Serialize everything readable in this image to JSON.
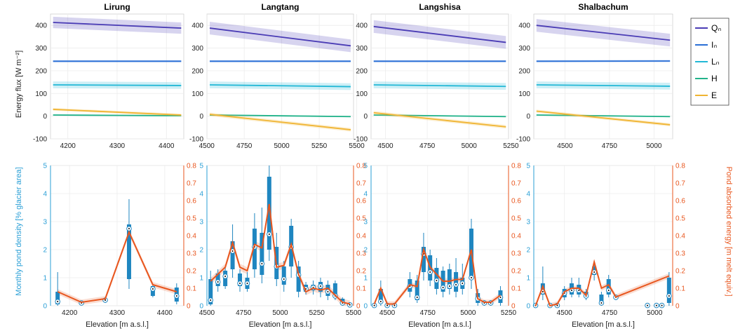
{
  "figure": {
    "top_ylabel": "Energy flux [W m⁻²]",
    "bottom_ylabel_left": "Monthly pond density [% glacier area]",
    "bottom_ylabel_right": "Pond absorbed energy [m melt equiv.]",
    "xlabel": "Elevation [m a.s.l.]",
    "legend": [
      "Qₙ",
      "Iₙ",
      "Lₙ",
      "H",
      "E"
    ],
    "colors": {
      "Qn": "#4a3cb5",
      "In": "#2a6fd6",
      "Ln": "#22b8d6",
      "H": "#22b38a",
      "E": "#f0b432",
      "box": "#1f86c0",
      "orange": "#e8561e",
      "left_axis": "#2a9fd6",
      "right_axis": "#e8561e"
    }
  },
  "chart_data": [
    {
      "type": "line",
      "title": "Lirung",
      "x": [
        4170,
        4430
      ],
      "ylim": [
        -100,
        450
      ],
      "xticks": [
        4200,
        4300,
        4400
      ],
      "yticks": [
        -100,
        0,
        100,
        200,
        300,
        400
      ],
      "series": [
        {
          "name": "Qₙ",
          "values": [
            413,
            388
          ],
          "band": 25
        },
        {
          "name": "Iₙ",
          "values": [
            242,
            242
          ],
          "band": 5
        },
        {
          "name": "Lₙ",
          "values": [
            138,
            135
          ],
          "band": 15
        },
        {
          "name": "H",
          "values": [
            5,
            2
          ],
          "band": 3
        },
        {
          "name": "E",
          "values": [
            30,
            5
          ],
          "band": 6
        }
      ]
    },
    {
      "type": "line",
      "title": "Langtang",
      "x": [
        4520,
        5460
      ],
      "ylim": [
        -100,
        450
      ],
      "xticks": [
        4500,
        4750,
        5000,
        5250,
        5500
      ],
      "yticks": [
        -100,
        0,
        100,
        200,
        300,
        400
      ],
      "series": [
        {
          "name": "Qₙ",
          "values": [
            388,
            310
          ],
          "band": 28
        },
        {
          "name": "Iₙ",
          "values": [
            242,
            242
          ],
          "band": 5
        },
        {
          "name": "Lₙ",
          "values": [
            138,
            130
          ],
          "band": 15
        },
        {
          "name": "H",
          "values": [
            5,
            -2
          ],
          "band": 3
        },
        {
          "name": "E",
          "values": [
            8,
            -60
          ],
          "band": 8
        }
      ]
    },
    {
      "type": "line",
      "title": "Langshisa",
      "x": [
        4430,
        5220
      ],
      "ylim": [
        -100,
        450
      ],
      "xticks": [
        4500,
        4750,
        5000,
        5250
      ],
      "yticks": [
        -100,
        0,
        100,
        200,
        300,
        400
      ],
      "series": [
        {
          "name": "Qₙ",
          "values": [
            395,
            325
          ],
          "band": 28
        },
        {
          "name": "Iₙ",
          "values": [
            242,
            242
          ],
          "band": 5
        },
        {
          "name": "Lₙ",
          "values": [
            138,
            131
          ],
          "band": 15
        },
        {
          "name": "H",
          "values": [
            5,
            -2
          ],
          "band": 3
        },
        {
          "name": "E",
          "values": [
            15,
            -47
          ],
          "band": 8
        }
      ]
    },
    {
      "type": "line",
      "title": "Shalbachum",
      "x": [
        4340,
        5090
      ],
      "ylim": [
        -100,
        450
      ],
      "xticks": [
        4500,
        4750,
        5000
      ],
      "yticks": [
        -100,
        0,
        100,
        200,
        300,
        400
      ],
      "series": [
        {
          "name": "Qₙ",
          "values": [
            400,
            335
          ],
          "band": 28
        },
        {
          "name": "Iₙ",
          "values": [
            242,
            243
          ],
          "band": 5
        },
        {
          "name": "Lₙ",
          "values": [
            138,
            132
          ],
          "band": 15
        },
        {
          "name": "H",
          "values": [
            5,
            -2
          ],
          "band": 3
        },
        {
          "name": "E",
          "values": [
            22,
            -38
          ],
          "band": 7
        }
      ]
    },
    {
      "type": "box",
      "title": "",
      "xlim": [
        4160,
        4440
      ],
      "ylim_left": [
        0,
        5
      ],
      "ylim_right": [
        0,
        0.8
      ],
      "xticks": [
        4200,
        4300,
        4400
      ],
      "yticks_left": [
        0,
        1,
        2,
        3,
        4,
        5
      ],
      "yticks_right": [
        0,
        0.1,
        0.2,
        0.3,
        0.4,
        0.5,
        0.6,
        0.7,
        0.8
      ],
      "boxes": [
        {
          "x": 4175,
          "q1": 0.05,
          "q3": 0.5,
          "lo": 0,
          "hi": 1.2,
          "med": 0.15
        },
        {
          "x": 4225,
          "q1": 0.08,
          "q3": 0.12,
          "lo": 0.05,
          "hi": 0.14,
          "med": 0.1
        },
        {
          "x": 4275,
          "q1": 0.15,
          "q3": 0.25,
          "lo": 0.1,
          "hi": 0.3,
          "med": 0.2
        },
        {
          "x": 4325,
          "q1": 0.95,
          "q3": 2.9,
          "lo": 0.6,
          "hi": 3.8,
          "med": 2.75
        },
        {
          "x": 4375,
          "q1": 0.35,
          "q3": 0.7,
          "lo": 0.3,
          "hi": 0.75,
          "med": 0.6
        },
        {
          "x": 4425,
          "q1": 0.15,
          "q3": 0.65,
          "lo": 0.05,
          "hi": 0.8,
          "med": 0.35
        }
      ],
      "energy": {
        "x": [
          4175,
          4225,
          4275,
          4325,
          4375,
          4425
        ],
        "y": [
          0.08,
          0.02,
          0.04,
          0.42,
          0.12,
          0.08
        ],
        "band": 0.015
      }
    },
    {
      "type": "box",
      "title": "",
      "xlim": [
        4500,
        5500
      ],
      "ylim_left": [
        0,
        5
      ],
      "ylim_right": [
        0,
        0.8
      ],
      "xticks": [
        4500,
        4750,
        5000,
        5250,
        5500
      ],
      "yticks_left": [
        0,
        1,
        2,
        3,
        4,
        5
      ],
      "yticks_right": [
        0,
        0.1,
        0.2,
        0.3,
        0.4,
        0.5,
        0.6,
        0.7,
        0.8
      ],
      "boxes": [
        {
          "x": 4525,
          "q1": 0.05,
          "q3": 0.95,
          "lo": 0,
          "hi": 1.25,
          "med": 0.2
        },
        {
          "x": 4575,
          "q1": 0.7,
          "q3": 1.15,
          "lo": 0.5,
          "hi": 1.3,
          "med": 0.85
        },
        {
          "x": 4625,
          "q1": 0.7,
          "q3": 1.25,
          "lo": 0.6,
          "hi": 1.4,
          "med": 1.05
        },
        {
          "x": 4675,
          "q1": 1.3,
          "q3": 2.3,
          "lo": 1.0,
          "hi": 2.9,
          "med": 1.95
        },
        {
          "x": 4725,
          "q1": 0.7,
          "q3": 1.15,
          "lo": 0.5,
          "hi": 1.3,
          "med": 0.8
        },
        {
          "x": 4775,
          "q1": 0.6,
          "q3": 1.0,
          "lo": 0.5,
          "hi": 1.2,
          "med": 0.8
        },
        {
          "x": 4825,
          "q1": 1.3,
          "q3": 2.75,
          "lo": 1.0,
          "hi": 3.3,
          "med": 2.1
        },
        {
          "x": 4875,
          "q1": 1.1,
          "q3": 2.6,
          "lo": 0.8,
          "hi": 3.5,
          "med": 1.5
        },
        {
          "x": 4925,
          "q1": 2.0,
          "q3": 4.6,
          "lo": 1.6,
          "hi": 5.0,
          "med": 2.55
        },
        {
          "x": 4975,
          "q1": 0.95,
          "q3": 2.1,
          "lo": 0.7,
          "hi": 2.6,
          "med": 1.4
        },
        {
          "x": 5025,
          "q1": 0.75,
          "q3": 1.4,
          "lo": 0.5,
          "hi": 1.6,
          "med": 0.95
        },
        {
          "x": 5075,
          "q1": 1.4,
          "q3": 2.85,
          "lo": 1.0,
          "hi": 3.1,
          "med": 2.1
        },
        {
          "x": 5125,
          "q1": 0.5,
          "q3": 1.4,
          "lo": 0.3,
          "hi": 1.6,
          "med": 1.1
        },
        {
          "x": 5175,
          "q1": 0.5,
          "q3": 0.75,
          "lo": 0.4,
          "hi": 0.85,
          "med": 0.6
        },
        {
          "x": 5225,
          "q1": 0.55,
          "q3": 0.75,
          "lo": 0.4,
          "hi": 0.9,
          "med": 0.65
        },
        {
          "x": 5275,
          "q1": 0.5,
          "q3": 0.85,
          "lo": 0.3,
          "hi": 1.0,
          "med": 0.7
        },
        {
          "x": 5325,
          "q1": 0.35,
          "q3": 0.75,
          "lo": 0.2,
          "hi": 0.9,
          "med": 0.5
        },
        {
          "x": 5375,
          "q1": 0.3,
          "q3": 0.8,
          "lo": 0.2,
          "hi": 0.9,
          "med": 0.35
        },
        {
          "x": 5425,
          "q1": 0.05,
          "q3": 0.25,
          "lo": 0,
          "hi": 0.3,
          "med": 0.1
        },
        {
          "x": 5475,
          "q1": 0.0,
          "q3": 0.08,
          "lo": 0,
          "hi": 0.1,
          "med": 0.03
        }
      ],
      "energy": {
        "x": [
          4525,
          4575,
          4625,
          4675,
          4725,
          4775,
          4825,
          4875,
          4925,
          4975,
          5025,
          5075,
          5125,
          5175,
          5225,
          5275,
          5325,
          5375,
          5425,
          5475
        ],
        "y": [
          0.14,
          0.18,
          0.22,
          0.36,
          0.22,
          0.2,
          0.35,
          0.33,
          0.58,
          0.22,
          0.23,
          0.35,
          0.18,
          0.08,
          0.1,
          0.09,
          0.1,
          0.06,
          0.02,
          0.01
        ],
        "band": 0.02
      }
    },
    {
      "type": "box",
      "title": "",
      "xlim": [
        4400,
        5250
      ],
      "ylim_left": [
        0,
        5
      ],
      "ylim_right": [
        0,
        0.8
      ],
      "xticks": [
        4500,
        4750,
        5000,
        5250
      ],
      "yticks_left": [
        0,
        1,
        2,
        3,
        4,
        5
      ],
      "yticks_right": [
        0,
        0.1,
        0.2,
        0.3,
        0.4,
        0.5,
        0.6,
        0.7,
        0.8
      ],
      "boxes": [
        {
          "x": 4420,
          "q1": 0.0,
          "q3": 0.02,
          "lo": 0,
          "hi": 0.03,
          "med": 0.01
        },
        {
          "x": 4460,
          "q1": 0.1,
          "q3": 0.6,
          "lo": 0,
          "hi": 0.9,
          "med": 0.15
        },
        {
          "x": 4500,
          "q1": 0.0,
          "q3": 0.03,
          "lo": 0,
          "hi": 0.05,
          "med": 0.01
        },
        {
          "x": 4545,
          "q1": 0.0,
          "q3": 0.03,
          "lo": 0,
          "hi": 0.05,
          "med": 0.01
        },
        {
          "x": 4640,
          "q1": 0.5,
          "q3": 0.95,
          "lo": 0.3,
          "hi": 1.2,
          "med": 0.7
        },
        {
          "x": 4685,
          "q1": 0.2,
          "q3": 0.9,
          "lo": 0.1,
          "hi": 1.1,
          "med": 0.3
        },
        {
          "x": 4725,
          "q1": 1.2,
          "q3": 2.1,
          "lo": 0.9,
          "hi": 2.6,
          "med": 1.85
        },
        {
          "x": 4765,
          "q1": 0.9,
          "q3": 1.8,
          "lo": 0.7,
          "hi": 2.0,
          "med": 1.2
        },
        {
          "x": 4805,
          "q1": 0.6,
          "q3": 1.35,
          "lo": 0.4,
          "hi": 1.7,
          "med": 0.9
        },
        {
          "x": 4845,
          "q1": 0.5,
          "q3": 1.25,
          "lo": 0.3,
          "hi": 1.4,
          "med": 0.65
        },
        {
          "x": 4885,
          "q1": 0.6,
          "q3": 1.3,
          "lo": 0.4,
          "hi": 1.5,
          "med": 0.7
        },
        {
          "x": 4925,
          "q1": 0.5,
          "q3": 1.2,
          "lo": 0.3,
          "hi": 1.7,
          "med": 0.75
        },
        {
          "x": 4965,
          "q1": 0.6,
          "q3": 1.0,
          "lo": 0.4,
          "hi": 1.5,
          "med": 0.8
        },
        {
          "x": 5020,
          "q1": 1.0,
          "q3": 2.75,
          "lo": 0.6,
          "hi": 3.1,
          "med": 1.0
        },
        {
          "x": 5060,
          "q1": 0.1,
          "q3": 0.45,
          "lo": 0,
          "hi": 0.6,
          "med": 0.25
        },
        {
          "x": 5100,
          "q1": 0.05,
          "q3": 0.15,
          "lo": 0,
          "hi": 0.2,
          "med": 0.1
        },
        {
          "x": 5140,
          "q1": 0.05,
          "q3": 0.15,
          "lo": 0,
          "hi": 0.2,
          "med": 0.1
        },
        {
          "x": 5200,
          "q1": 0.1,
          "q3": 0.55,
          "lo": 0,
          "hi": 0.7,
          "med": 0.3
        }
      ],
      "energy": {
        "x": [
          4420,
          4460,
          4500,
          4545,
          4640,
          4685,
          4725,
          4765,
          4805,
          4845,
          4885,
          4925,
          4965,
          5020,
          5060,
          5100,
          5140,
          5200
        ],
        "y": [
          0.01,
          0.1,
          0.01,
          0.01,
          0.12,
          0.11,
          0.32,
          0.22,
          0.18,
          0.14,
          0.14,
          0.15,
          0.15,
          0.32,
          0.04,
          0.02,
          0.02,
          0.06
        ],
        "band": 0.015
      }
    },
    {
      "type": "box",
      "title": "",
      "xlim": [
        4330,
        5100
      ],
      "ylim_left": [
        0,
        5
      ],
      "ylim_right": [
        0,
        0.8
      ],
      "xticks": [
        4500,
        4750,
        5000
      ],
      "yticks_left": [
        0,
        1,
        2,
        3,
        4,
        5
      ],
      "yticks_right": [
        0,
        0.1,
        0.2,
        0.3,
        0.4,
        0.5,
        0.6,
        0.7,
        0.8
      ],
      "boxes": [
        {
          "x": 4340,
          "q1": 0.0,
          "q3": 0.03,
          "lo": 0,
          "hi": 0.05,
          "med": 0.01
        },
        {
          "x": 4380,
          "q1": 0.4,
          "q3": 0.8,
          "lo": 0.2,
          "hi": 1.4,
          "med": 0.5
        },
        {
          "x": 4420,
          "q1": 0.0,
          "q3": 0.03,
          "lo": 0,
          "hi": 0.05,
          "med": 0.01
        },
        {
          "x": 4460,
          "q1": 0.0,
          "q3": 0.03,
          "lo": 0,
          "hi": 0.05,
          "med": 0.01
        },
        {
          "x": 4500,
          "q1": 0.3,
          "q3": 0.6,
          "lo": 0.2,
          "hi": 0.7,
          "med": 0.45
        },
        {
          "x": 4540,
          "q1": 0.4,
          "q3": 0.8,
          "lo": 0.3,
          "hi": 1.0,
          "med": 0.55
        },
        {
          "x": 4580,
          "q1": 0.4,
          "q3": 0.75,
          "lo": 0.3,
          "hi": 1.0,
          "med": 0.55
        },
        {
          "x": 4620,
          "q1": 0.3,
          "q3": 0.5,
          "lo": 0.2,
          "hi": 0.6,
          "med": 0.35
        },
        {
          "x": 4665,
          "q1": 1.1,
          "q3": 1.4,
          "lo": 0.9,
          "hi": 1.6,
          "med": 1.2
        },
        {
          "x": 4705,
          "q1": 0.05,
          "q3": 0.4,
          "lo": 0,
          "hi": 0.5,
          "med": 0.1
        },
        {
          "x": 4745,
          "q1": 0.4,
          "q3": 0.95,
          "lo": 0.3,
          "hi": 1.1,
          "med": 0.55
        },
        {
          "x": 4785,
          "q1": 0.25,
          "q3": 0.35,
          "lo": 0.2,
          "hi": 0.4,
          "med": 0.3
        },
        {
          "x": 4960,
          "q1": 0.0,
          "q3": 0.02,
          "lo": 0,
          "hi": 0.03,
          "med": 0.01
        },
        {
          "x": 5010,
          "q1": 0.0,
          "q3": 0.02,
          "lo": 0,
          "hi": 0.03,
          "med": 0.01
        },
        {
          "x": 5040,
          "q1": 0.0,
          "q3": 0.02,
          "lo": 0,
          "hi": 0.03,
          "med": 0.01
        },
        {
          "x": 5080,
          "q1": 0.1,
          "q3": 1.0,
          "lo": 0,
          "hi": 1.2,
          "med": 0.35
        }
      ],
      "energy": {
        "x": [
          4340,
          4380,
          4420,
          4460,
          4500,
          4540,
          4580,
          4620,
          4665,
          4705,
          4745,
          4785,
          5080
        ],
        "y": [
          0.0,
          0.11,
          0.0,
          0.01,
          0.08,
          0.1,
          0.1,
          0.06,
          0.25,
          0.1,
          0.12,
          0.05,
          0.17
        ],
        "band": 0.015
      }
    }
  ]
}
